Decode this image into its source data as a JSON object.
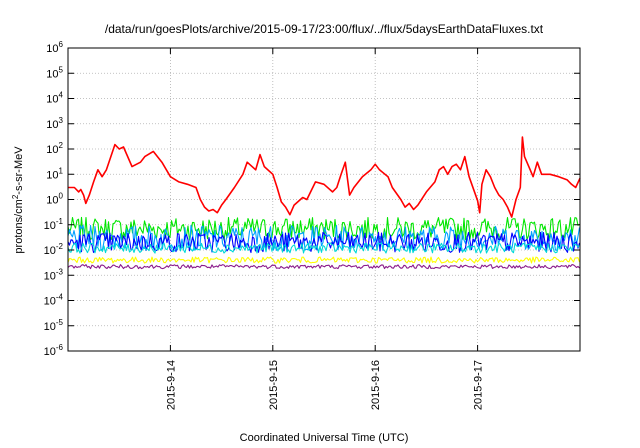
{
  "chart_data": {
    "type": "line",
    "title": "/data/run/goesPlots/archive/2015-09-17/23:00/flux/../flux/5daysEarthDataFluxes.txt",
    "xlabel": "Coordinated Universal Time (UTC)",
    "ylabel": "protons/cm2-s-sr-MeV",
    "ylabel_parts": {
      "a": "protons/cm",
      "sup": "2",
      "b": "-s-sr-MeV"
    },
    "y_scale": "log",
    "ylim": [
      1e-06,
      1000000.0
    ],
    "y_ticks": [
      {
        "base": "10",
        "exp": "-6"
      },
      {
        "base": "10",
        "exp": "-5"
      },
      {
        "base": "10",
        "exp": "-4"
      },
      {
        "base": "10",
        "exp": "-3"
      },
      {
        "base": "10",
        "exp": "-2"
      },
      {
        "base": "10",
        "exp": "-1"
      },
      {
        "base": "10",
        "exp": "0"
      },
      {
        "base": "10",
        "exp": "1"
      },
      {
        "base": "10",
        "exp": "2"
      },
      {
        "base": "10",
        "exp": "3"
      },
      {
        "base": "10",
        "exp": "4"
      },
      {
        "base": "10",
        "exp": "5"
      },
      {
        "base": "10",
        "exp": "6"
      }
    ],
    "x_ticks": [
      "2015-9-14",
      "2015-9-15",
      "2015-9-16",
      "2015-9-17"
    ],
    "x_range_days": [
      "2015-09-13T00:00",
      "2015-09-18T00:00"
    ],
    "grid": true,
    "series": [
      {
        "color": "#ff0000",
        "points": [
          [
            "2015-09-13T00:00",
            3
          ],
          [
            "2015-09-13T01:30",
            3
          ],
          [
            "2015-09-13T02:30",
            2
          ],
          [
            "2015-09-13T03:00",
            2.5
          ],
          [
            "2015-09-13T03:40",
            1.5
          ],
          [
            "2015-09-13T04:10",
            0.7
          ],
          [
            "2015-09-13T05:00",
            1.5
          ],
          [
            "2015-09-13T06:00",
            5
          ],
          [
            "2015-09-13T07:00",
            15
          ],
          [
            "2015-09-13T08:00",
            8
          ],
          [
            "2015-09-13T09:00",
            15
          ],
          [
            "2015-09-13T11:00",
            150
          ],
          [
            "2015-09-13T12:00",
            100
          ],
          [
            "2015-09-13T13:00",
            120
          ],
          [
            "2015-09-13T15:00",
            20
          ],
          [
            "2015-09-13T17:00",
            30
          ],
          [
            "2015-09-13T18:00",
            50
          ],
          [
            "2015-09-13T20:00",
            80
          ],
          [
            "2015-09-13T22:00",
            30
          ],
          [
            "2015-09-14T00:00",
            8
          ],
          [
            "2015-09-14T02:00",
            5
          ],
          [
            "2015-09-14T04:00",
            4
          ],
          [
            "2015-09-14T06:00",
            3
          ],
          [
            "2015-09-14T07:00",
            1
          ],
          [
            "2015-09-14T08:00",
            0.5
          ],
          [
            "2015-09-14T09:00",
            0.35
          ],
          [
            "2015-09-14T10:00",
            0.4
          ],
          [
            "2015-09-14T11:00",
            0.3
          ],
          [
            "2015-09-14T12:00",
            0.6
          ],
          [
            "2015-09-14T13:00",
            1
          ],
          [
            "2015-09-14T15:00",
            3
          ],
          [
            "2015-09-14T17:00",
            10
          ],
          [
            "2015-09-14T18:00",
            30
          ],
          [
            "2015-09-14T20:00",
            15
          ],
          [
            "2015-09-14T21:00",
            60
          ],
          [
            "2015-09-14T22:00",
            20
          ],
          [
            "2015-09-15T00:00",
            10
          ],
          [
            "2015-09-15T01:00",
            3
          ],
          [
            "2015-09-15T02:00",
            0.8
          ],
          [
            "2015-09-15T03:00",
            0.5
          ],
          [
            "2015-09-15T04:00",
            0.25
          ],
          [
            "2015-09-15T05:00",
            0.6
          ],
          [
            "2015-09-15T07:00",
            1.2
          ],
          [
            "2015-09-15T08:00",
            1
          ],
          [
            "2015-09-15T10:00",
            5
          ],
          [
            "2015-09-15T12:00",
            4
          ],
          [
            "2015-09-15T14:00",
            2
          ],
          [
            "2015-09-15T15:00",
            3
          ],
          [
            "2015-09-15T16:00",
            10
          ],
          [
            "2015-09-15T17:00",
            30
          ],
          [
            "2015-09-15T18:00",
            1.5
          ],
          [
            "2015-09-15T19:00",
            3
          ],
          [
            "2015-09-15T21:00",
            8
          ],
          [
            "2015-09-15T23:00",
            15
          ],
          [
            "2015-09-16T00:00",
            25
          ],
          [
            "2015-09-16T01:00",
            15
          ],
          [
            "2015-09-16T03:00",
            8
          ],
          [
            "2015-09-16T04:00",
            3
          ],
          [
            "2015-09-16T06:00",
            1
          ],
          [
            "2015-09-16T07:00",
            0.5
          ],
          [
            "2015-09-16T08:00",
            0.7
          ],
          [
            "2015-09-16T09:00",
            0.4
          ],
          [
            "2015-09-16T10:00",
            0.6
          ],
          [
            "2015-09-16T12:00",
            2
          ],
          [
            "2015-09-16T14:00",
            5
          ],
          [
            "2015-09-16T15:00",
            15
          ],
          [
            "2015-09-16T16:00",
            20
          ],
          [
            "2015-09-16T17:00",
            10
          ],
          [
            "2015-09-16T18:00",
            20
          ],
          [
            "2015-09-16T19:00",
            25
          ],
          [
            "2015-09-16T20:00",
            15
          ],
          [
            "2015-09-16T21:00",
            50
          ],
          [
            "2015-09-16T22:00",
            8
          ],
          [
            "2015-09-17T00:00",
            0.9
          ],
          [
            "2015-09-17T00:30",
            0.3
          ],
          [
            "2015-09-17T01:00",
            4
          ],
          [
            "2015-09-17T02:00",
            15
          ],
          [
            "2015-09-17T03:00",
            8
          ],
          [
            "2015-09-17T04:00",
            3
          ],
          [
            "2015-09-17T05:00",
            1.5
          ],
          [
            "2015-09-17T06:00",
            1
          ],
          [
            "2015-09-17T07:00",
            0.5
          ],
          [
            "2015-09-17T08:00",
            0.2
          ],
          [
            "2015-09-17T09:00",
            1
          ],
          [
            "2015-09-17T10:00",
            3
          ],
          [
            "2015-09-17T10:30",
            300
          ],
          [
            "2015-09-17T11:00",
            50
          ],
          [
            "2015-09-17T12:00",
            20
          ],
          [
            "2015-09-17T13:00",
            8
          ],
          [
            "2015-09-17T14:00",
            30
          ],
          [
            "2015-09-17T15:00",
            10
          ],
          [
            "2015-09-17T17:00",
            10
          ],
          [
            "2015-09-17T19:00",
            8
          ],
          [
            "2015-09-17T21:00",
            6
          ],
          [
            "2015-09-17T22:00",
            4
          ],
          [
            "2015-09-17T23:00",
            3
          ],
          [
            "2015-09-18T00:00",
            7
          ]
        ]
      },
      {
        "color": "#00e600",
        "level": 0.07,
        "spread": 0.45
      },
      {
        "color": "#00a0ff",
        "level": 0.03,
        "spread": 0.5
      },
      {
        "color": "#0000ff",
        "level": 0.02,
        "spread": 0.4
      },
      {
        "color": "#00d8d8",
        "level": 0.012,
        "spread": 0.2
      },
      {
        "color": "#ffff00",
        "level": 0.004,
        "spread": 0.12
      },
      {
        "color": "#8b1c8b",
        "level": 0.0022,
        "spread": 0.08
      }
    ]
  }
}
